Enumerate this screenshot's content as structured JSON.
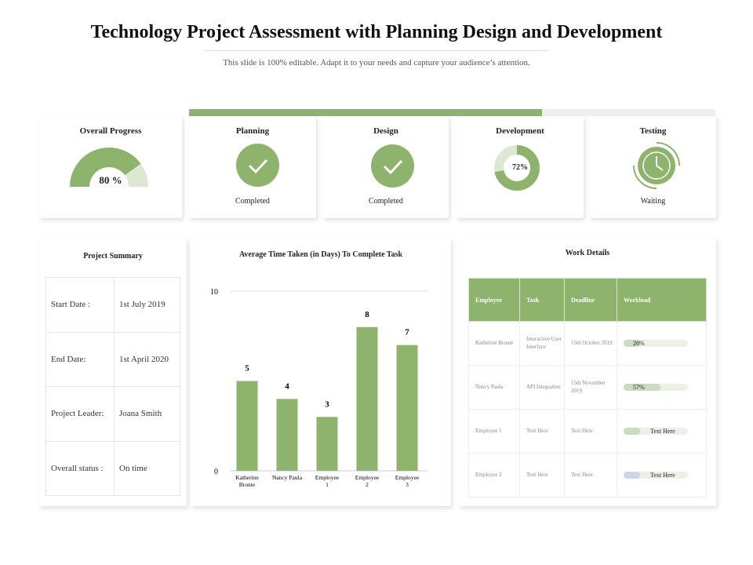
{
  "header": {
    "title": "Technology Project Assessment with Planning Design and Development",
    "subtitle": "This slide is 100% editable. Adapt it to your needs and capture your audience’s attention."
  },
  "colors": {
    "accent": "#8db36d",
    "light": "#dde8d3"
  },
  "progress_bar": {
    "percent": 67
  },
  "stages": [
    {
      "title": "Overall Progress",
      "value": "80 %",
      "percent": 80
    },
    {
      "title": "Planning",
      "status": "Completed",
      "icon": "check-icon"
    },
    {
      "title": "Design",
      "status": "Completed",
      "icon": "check-icon"
    },
    {
      "title": "Development",
      "value": "72%",
      "percent": 72
    },
    {
      "title": "Testing",
      "status": "Waiting",
      "icon": "clock-icon"
    }
  ],
  "summary": {
    "title": "Project Summary",
    "rows": [
      {
        "label": "Start Date :",
        "value": "1st July 2019"
      },
      {
        "label": "End Date:",
        "value": "1st April 2020"
      },
      {
        "label": "Project Leader:",
        "value": "Joana Smith"
      },
      {
        "label": "Overall status :",
        "value": "On time"
      }
    ]
  },
  "chart_data": {
    "type": "bar",
    "title": "Average Time Taken (in Days) To Complete Task",
    "categories": [
      "Katherine Bronte",
      "Nancy Paula",
      "Employee 1",
      "Employee 2",
      "Employee 3"
    ],
    "values": [
      5,
      4,
      3,
      8,
      7
    ],
    "ylim": [
      0,
      10
    ],
    "yticks": [
      "0",
      "10"
    ],
    "xlabel": "",
    "ylabel": ""
  },
  "work": {
    "title": "Work Details",
    "headers": [
      "Employee",
      "Task",
      "Deadline",
      "Workload"
    ],
    "rows": [
      {
        "employee": "Katherine Bronte",
        "task": "Interactive User Interface",
        "deadline": "15th October 2019",
        "workload": "26%",
        "percent": 26,
        "color": "#cbdbbd"
      },
      {
        "employee": "Nancy Paula",
        "task": "API Integration",
        "deadline": "15th November 2019",
        "workload": "57%",
        "percent": 57,
        "color": "#cbdbbd"
      },
      {
        "employee": "Employee 1",
        "task": "Text Here",
        "deadline": "Text Here",
        "workload": "Text Here",
        "percent": 25,
        "color": "#cbdbbd"
      },
      {
        "employee": "Employee 2",
        "task": "Text Here",
        "deadline": "Text Here",
        "workload": "Text Here",
        "percent": 25,
        "color": "#c9d6ee"
      }
    ]
  }
}
